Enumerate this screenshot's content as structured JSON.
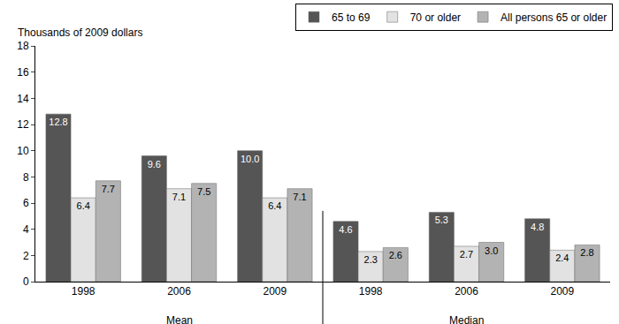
{
  "chart_data": {
    "type": "bar",
    "y_label": "Thousands of 2009 dollars",
    "categories": [
      "1998",
      "2006",
      "2009",
      "1998",
      "2006",
      "2009"
    ],
    "category_groups": [
      "Mean",
      "Mean",
      "Mean",
      "Median",
      "Median",
      "Median"
    ],
    "series": [
      {
        "name": "65 to 69",
        "color": "#555555",
        "values": [
          12.8,
          9.6,
          10.0,
          4.6,
          5.3,
          4.8
        ],
        "value_labels": [
          "12.8",
          "9.6",
          "10.0",
          "4.6",
          "5.3",
          "4.8"
        ]
      },
      {
        "name": "70 or older",
        "color": "#e2e2e2",
        "values": [
          6.4,
          7.1,
          6.4,
          2.3,
          2.7,
          2.4
        ],
        "value_labels": [
          "6.4",
          "7.1",
          "6.4",
          "2.3",
          "2.7",
          "2.4"
        ]
      },
      {
        "name": "All persons 65 or older",
        "color": "#b3b3b3",
        "values": [
          7.7,
          7.5,
          7.1,
          2.6,
          3.0,
          2.8
        ],
        "value_labels": [
          "7.7",
          "7.5",
          "7.1",
          "2.6",
          "3.0",
          "2.8"
        ]
      }
    ],
    "ylim": [
      0,
      18
    ],
    "yticks": [
      0,
      2,
      4,
      6,
      8,
      10,
      12,
      14,
      16,
      18
    ],
    "grid": false,
    "legend": "top right",
    "data_labels": true
  }
}
